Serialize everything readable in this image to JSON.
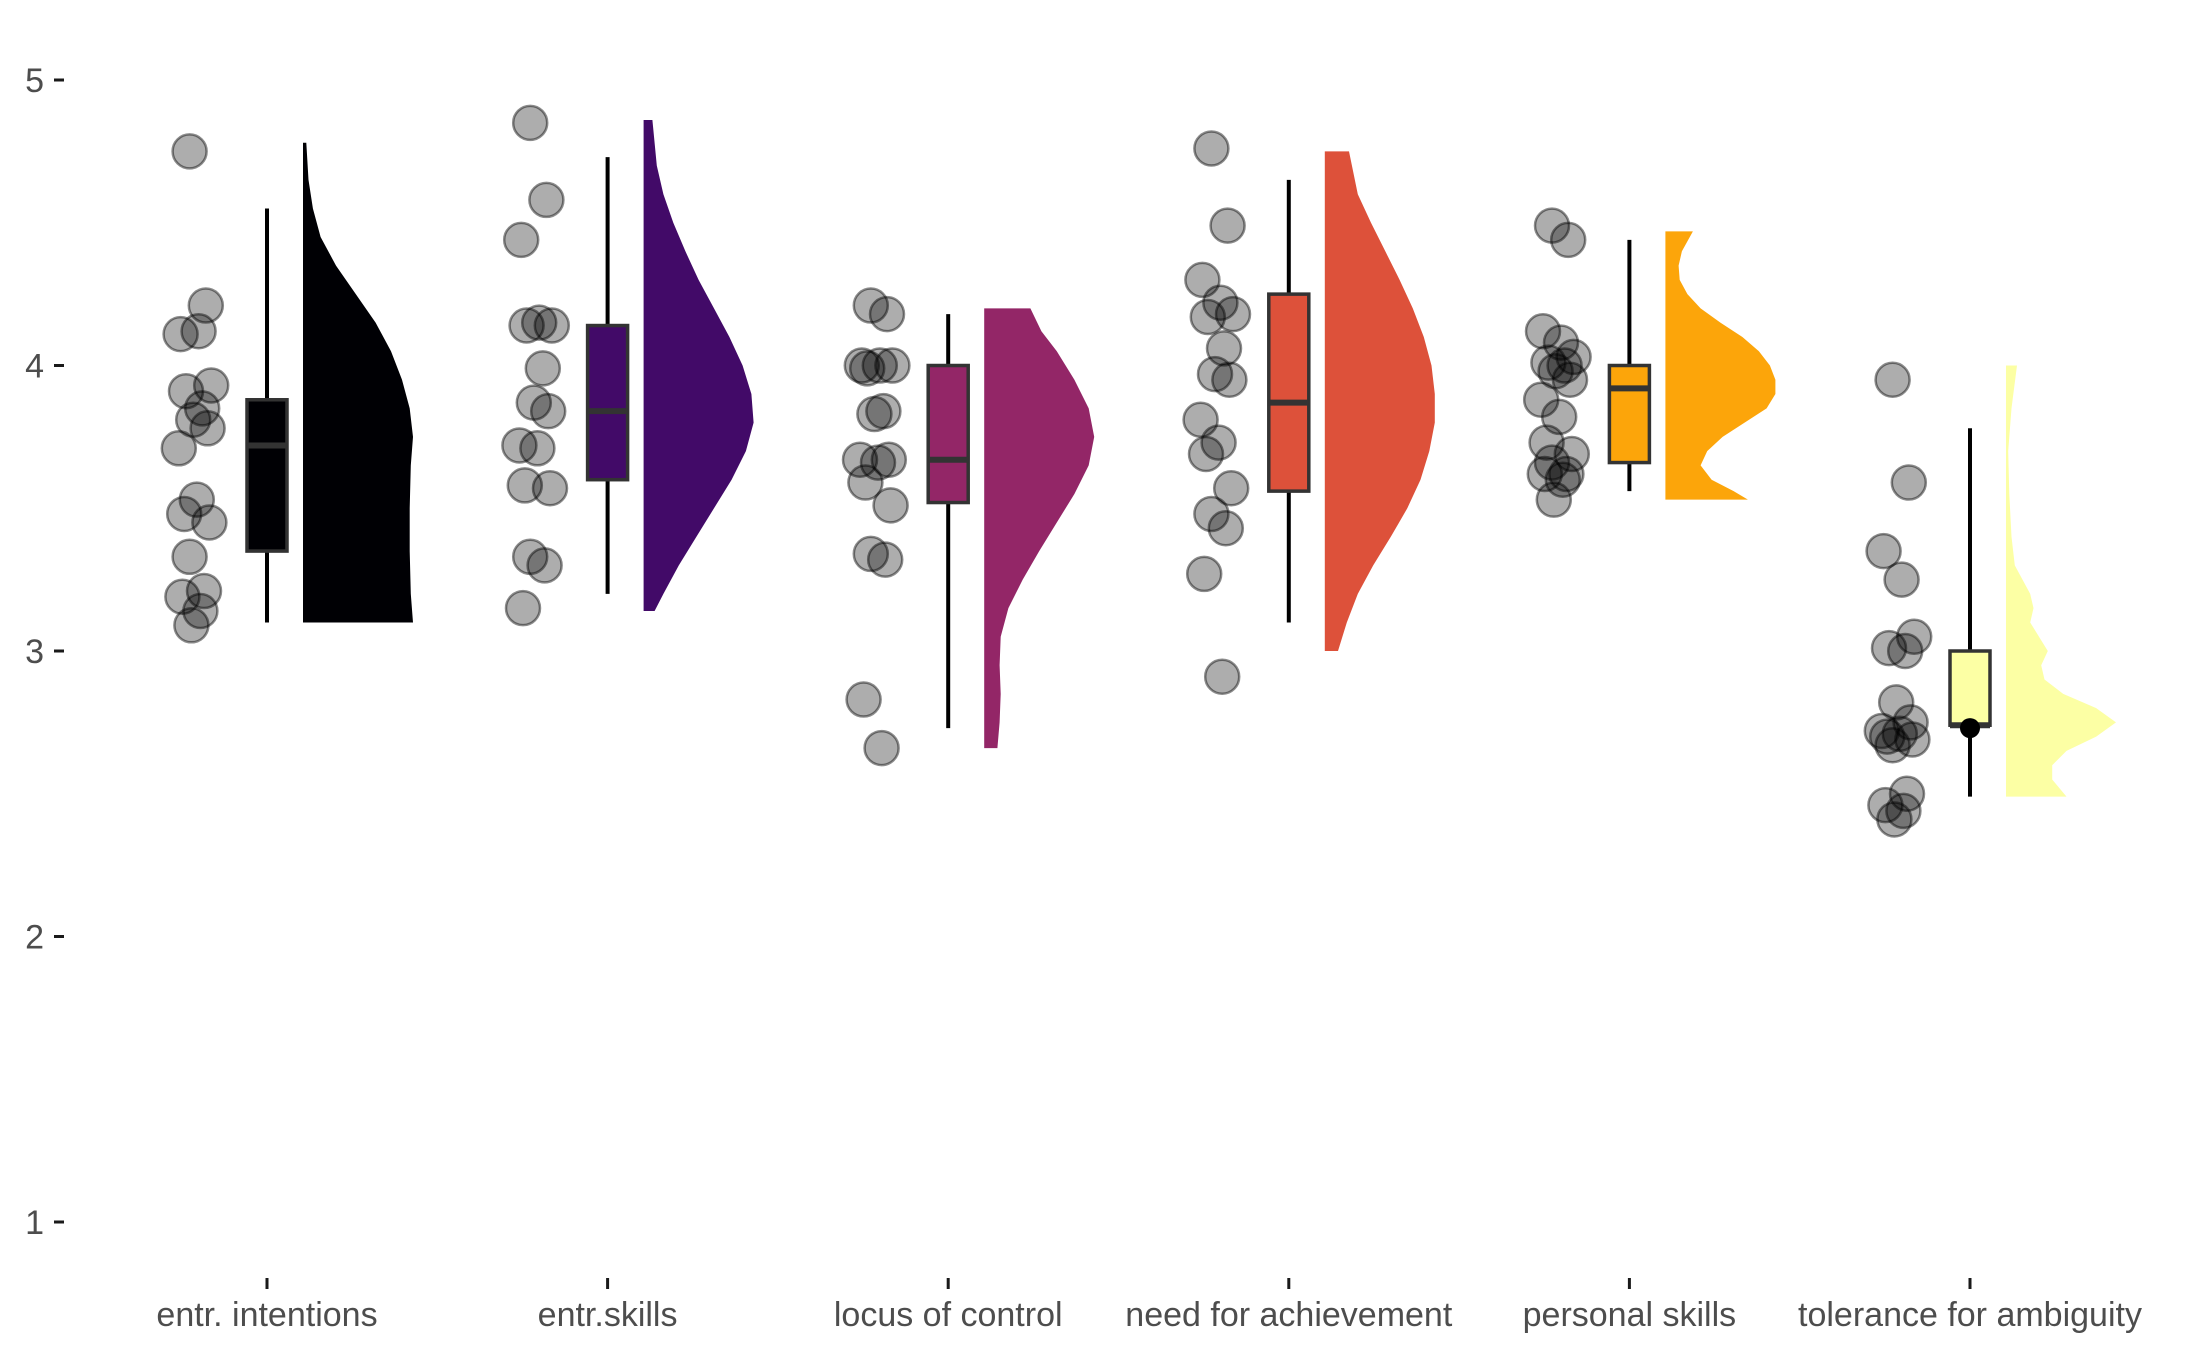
{
  "chart_data": {
    "type": "raincloud",
    "title": "",
    "xlabel": "",
    "ylabel": "",
    "ylim": [
      0.9,
      5.2
    ],
    "yticks": [
      1,
      2,
      3,
      4,
      5
    ],
    "grid": false,
    "legend": "none",
    "categories": [
      {
        "label": "entr. intentions",
        "color": "#000004",
        "box": {
          "min": 3.1,
          "q1": 3.35,
          "median": 3.72,
          "q3": 3.88,
          "max": 4.55
        },
        "outliers": [],
        "density": {
          "min": 3.1,
          "max": 4.78,
          "points": [
            [
              3.1,
              1.0
            ],
            [
              3.2,
              0.98
            ],
            [
              3.35,
              0.97
            ],
            [
              3.5,
              0.97
            ],
            [
              3.65,
              0.98
            ],
            [
              3.75,
              1.0
            ],
            [
              3.85,
              0.97
            ],
            [
              3.95,
              0.9
            ],
            [
              4.05,
              0.8
            ],
            [
              4.15,
              0.66
            ],
            [
              4.25,
              0.48
            ],
            [
              4.35,
              0.3
            ],
            [
              4.45,
              0.16
            ],
            [
              4.55,
              0.09
            ],
            [
              4.65,
              0.05
            ],
            [
              4.78,
              0.03
            ]
          ]
        },
        "points": [
          4.75,
          4.21,
          4.11,
          4.12,
          3.93,
          3.91,
          3.85,
          3.81,
          3.78,
          3.71,
          3.53,
          3.48,
          3.45,
          3.33,
          3.21,
          3.19,
          3.14,
          3.09
        ]
      },
      {
        "label": "entr.skills",
        "color": "#420a68",
        "box": {
          "min": 3.2,
          "q1": 3.6,
          "median": 3.84,
          "q3": 4.14,
          "max": 4.73
        },
        "outliers": [],
        "density": {
          "min": 3.14,
          "max": 4.86,
          "points": [
            [
              3.14,
              0.1
            ],
            [
              3.2,
              0.18
            ],
            [
              3.3,
              0.32
            ],
            [
              3.4,
              0.48
            ],
            [
              3.5,
              0.64
            ],
            [
              3.6,
              0.8
            ],
            [
              3.7,
              0.93
            ],
            [
              3.8,
              1.0
            ],
            [
              3.9,
              0.98
            ],
            [
              4.0,
              0.9
            ],
            [
              4.1,
              0.78
            ],
            [
              4.2,
              0.64
            ],
            [
              4.3,
              0.5
            ],
            [
              4.4,
              0.38
            ],
            [
              4.5,
              0.27
            ],
            [
              4.6,
              0.18
            ],
            [
              4.7,
              0.12
            ],
            [
              4.86,
              0.08
            ]
          ]
        },
        "points": [
          4.85,
          4.58,
          4.44,
          4.15,
          4.14,
          4.14,
          3.99,
          3.87,
          3.84,
          3.72,
          3.71,
          3.58,
          3.57,
          3.33,
          3.3,
          3.15
        ]
      },
      {
        "label": "locus of control",
        "color": "#932667",
        "box": {
          "min": 2.73,
          "q1": 3.52,
          "median": 3.67,
          "q3": 4.0,
          "max": 4.18
        },
        "outliers": [],
        "density": {
          "min": 2.66,
          "max": 4.2,
          "points": [
            [
              2.66,
              0.12
            ],
            [
              2.75,
              0.14
            ],
            [
              2.85,
              0.15
            ],
            [
              2.95,
              0.14
            ],
            [
              3.05,
              0.15
            ],
            [
              3.15,
              0.22
            ],
            [
              3.25,
              0.35
            ],
            [
              3.35,
              0.5
            ],
            [
              3.45,
              0.66
            ],
            [
              3.55,
              0.82
            ],
            [
              3.65,
              0.95
            ],
            [
              3.75,
              1.0
            ],
            [
              3.85,
              0.95
            ],
            [
              3.95,
              0.82
            ],
            [
              4.05,
              0.66
            ],
            [
              4.12,
              0.52
            ],
            [
              4.2,
              0.42
            ]
          ]
        },
        "points": [
          4.21,
          4.18,
          4.0,
          4.0,
          4.0,
          3.99,
          3.84,
          3.83,
          3.67,
          3.67,
          3.66,
          3.59,
          3.51,
          3.34,
          3.32,
          2.83,
          2.66
        ]
      },
      {
        "label": "need for achievement",
        "color": "#dd513a",
        "box": {
          "min": 3.1,
          "q1": 3.56,
          "median": 3.87,
          "q3": 4.25,
          "max": 4.65
        },
        "outliers": [],
        "density": {
          "min": 3.0,
          "max": 4.75,
          "points": [
            [
              3.0,
              0.12
            ],
            [
              3.1,
              0.2
            ],
            [
              3.2,
              0.3
            ],
            [
              3.3,
              0.44
            ],
            [
              3.4,
              0.6
            ],
            [
              3.5,
              0.75
            ],
            [
              3.6,
              0.87
            ],
            [
              3.7,
              0.95
            ],
            [
              3.8,
              1.0
            ],
            [
              3.9,
              1.0
            ],
            [
              4.0,
              0.97
            ],
            [
              4.1,
              0.9
            ],
            [
              4.2,
              0.8
            ],
            [
              4.3,
              0.68
            ],
            [
              4.4,
              0.55
            ],
            [
              4.5,
              0.42
            ],
            [
              4.6,
              0.3
            ],
            [
              4.75,
              0.22
            ]
          ]
        },
        "points": [
          4.76,
          4.49,
          4.3,
          4.22,
          4.18,
          4.17,
          4.06,
          3.97,
          3.95,
          3.81,
          3.73,
          3.69,
          3.57,
          3.48,
          3.43,
          3.27,
          2.91
        ]
      },
      {
        "label": "personal skills",
        "color": "#fca50a",
        "box": {
          "min": 3.56,
          "q1": 3.66,
          "median": 3.92,
          "q3": 4.0,
          "max": 4.44
        },
        "outliers": [],
        "density": {
          "min": 3.53,
          "max": 4.47,
          "points": [
            [
              3.53,
              0.75
            ],
            [
              3.56,
              0.62
            ],
            [
              3.6,
              0.42
            ],
            [
              3.65,
              0.32
            ],
            [
              3.7,
              0.38
            ],
            [
              3.75,
              0.52
            ],
            [
              3.8,
              0.72
            ],
            [
              3.85,
              0.92
            ],
            [
              3.9,
              1.0
            ],
            [
              3.95,
              1.0
            ],
            [
              4.0,
              0.95
            ],
            [
              4.05,
              0.85
            ],
            [
              4.1,
              0.7
            ],
            [
              4.15,
              0.5
            ],
            [
              4.2,
              0.32
            ],
            [
              4.25,
              0.2
            ],
            [
              4.3,
              0.13
            ],
            [
              4.35,
              0.12
            ],
            [
              4.4,
              0.15
            ],
            [
              4.47,
              0.25
            ]
          ]
        },
        "points": [
          4.49,
          4.44,
          4.12,
          4.08,
          4.03,
          4.01,
          4.0,
          3.98,
          3.95,
          3.88,
          3.82,
          3.73,
          3.69,
          3.66,
          3.62,
          3.62,
          3.6,
          3.53
        ]
      },
      {
        "label": "tolerance for ambiguity",
        "color": "#fcffa4",
        "box": {
          "min": 2.49,
          "q1": 2.74,
          "median": 2.74,
          "q3": 3.0,
          "max": 3.78
        },
        "outliers": [
          2.73
        ],
        "density": {
          "min": 2.49,
          "max": 4.0,
          "points": [
            [
              2.49,
              0.55
            ],
            [
              2.55,
              0.42
            ],
            [
              2.6,
              0.42
            ],
            [
              2.65,
              0.55
            ],
            [
              2.7,
              0.82
            ],
            [
              2.75,
              1.0
            ],
            [
              2.8,
              0.82
            ],
            [
              2.85,
              0.52
            ],
            [
              2.9,
              0.35
            ],
            [
              2.95,
              0.32
            ],
            [
              3.0,
              0.38
            ],
            [
              3.05,
              0.3
            ],
            [
              3.1,
              0.22
            ],
            [
              3.15,
              0.25
            ],
            [
              3.2,
              0.22
            ],
            [
              3.25,
              0.15
            ],
            [
              3.3,
              0.08
            ],
            [
              3.4,
              0.05
            ],
            [
              3.55,
              0.03
            ],
            [
              3.7,
              0.02
            ],
            [
              3.85,
              0.05
            ],
            [
              4.0,
              0.1
            ]
          ]
        },
        "points": [
          3.95,
          3.59,
          3.35,
          3.25,
          3.05,
          3.01,
          3.0,
          2.82,
          2.75,
          2.72,
          2.71,
          2.7,
          2.69,
          2.67,
          2.5,
          2.46,
          2.44,
          2.41
        ]
      }
    ]
  }
}
